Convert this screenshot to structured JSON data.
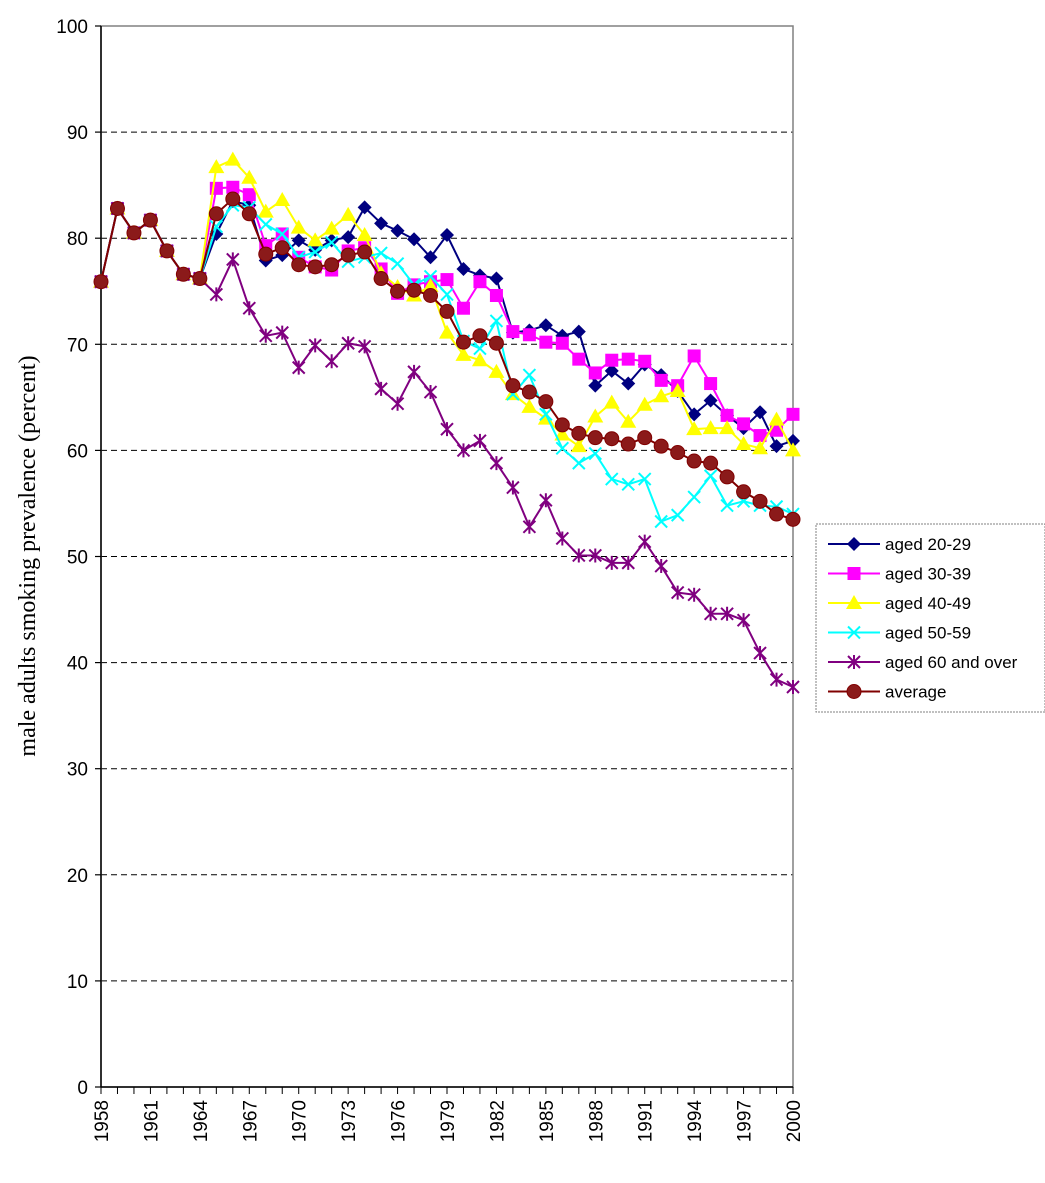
{
  "chart_data": {
    "type": "line",
    "xlabel": "",
    "ylabel": "male adults smoking prevalence (percent)",
    "x": [
      1958,
      1959,
      1960,
      1961,
      1962,
      1963,
      1964,
      1965,
      1966,
      1967,
      1968,
      1969,
      1970,
      1971,
      1972,
      1973,
      1974,
      1975,
      1976,
      1977,
      1978,
      1979,
      1980,
      1981,
      1982,
      1983,
      1984,
      1985,
      1986,
      1987,
      1988,
      1989,
      1990,
      1991,
      1992,
      1993,
      1994,
      1995,
      1996,
      1997,
      1998,
      1999,
      2000
    ],
    "xticks": [
      "1958",
      "1961",
      "1964",
      "1967",
      "1970",
      "1973",
      "1976",
      "1979",
      "1982",
      "1985",
      "1988",
      "1991",
      "1994",
      "1997",
      "2000"
    ],
    "ylim": [
      0,
      100
    ],
    "yticks": [
      "0",
      "10",
      "20",
      "30",
      "40",
      "50",
      "60",
      "70",
      "80",
      "90",
      "100"
    ],
    "grid": "horizontal dashed",
    "legend_position": "right",
    "series": [
      {
        "name": "aged 20-29",
        "color": "#000080",
        "marker": "diamond",
        "values": [
          75.9,
          82.8,
          80.5,
          81.7,
          78.8,
          76.6,
          76.2,
          80.4,
          83.5,
          83.1,
          77.9,
          78.4,
          79.8,
          78.9,
          79.8,
          80.1,
          82.9,
          81.4,
          80.7,
          79.9,
          78.2,
          80.3,
          77.1,
          76.5,
          76.2,
          71.1,
          71.3,
          71.8,
          70.8,
          71.2,
          66.1,
          67.5,
          66.3,
          68.1,
          67.1,
          65.6,
          63.4,
          64.7,
          63.3,
          62.1,
          63.6,
          60.4,
          60.9
        ]
      },
      {
        "name": "aged 30-39",
        "color": "#ff00ff",
        "marker": "square",
        "values": [
          75.9,
          82.8,
          80.5,
          81.7,
          78.8,
          76.6,
          76.2,
          84.7,
          84.8,
          84.1,
          79.3,
          80.4,
          78.2,
          77.3,
          77.0,
          78.8,
          79.1,
          77.1,
          74.8,
          75.6,
          75.9,
          76.1,
          73.4,
          75.9,
          74.6,
          71.2,
          70.9,
          70.2,
          70.1,
          68.6,
          67.3,
          68.5,
          68.6,
          68.4,
          66.6,
          66.1,
          68.9,
          66.3,
          63.3,
          62.5,
          61.4,
          61.9,
          63.4
        ]
      },
      {
        "name": "aged 40-49",
        "color": "#ffff00",
        "marker": "triangle",
        "values": [
          75.9,
          82.8,
          80.5,
          81.7,
          78.8,
          76.6,
          76.2,
          86.7,
          87.4,
          85.7,
          82.5,
          83.6,
          81.0,
          79.8,
          80.9,
          82.2,
          80.3,
          76.7,
          75.4,
          74.6,
          75.5,
          71.1,
          69.0,
          68.5,
          67.4,
          65.3,
          64.1,
          63.0,
          61.5,
          60.4,
          63.2,
          64.5,
          62.7,
          64.3,
          65.1,
          65.6,
          62.0,
          62.1,
          62.1,
          60.6,
          60.2,
          62.9,
          60.0
        ]
      },
      {
        "name": "aged 50-59",
        "color": "#00ffff",
        "marker": "x",
        "values": [
          75.9,
          82.8,
          80.5,
          81.7,
          78.8,
          76.6,
          76.2,
          81.1,
          83.1,
          82.9,
          81.3,
          80.4,
          78.2,
          78.7,
          79.6,
          77.8,
          78.2,
          78.6,
          77.6,
          75.6,
          76.4,
          74.7,
          70.3,
          69.6,
          72.2,
          65.3,
          67.1,
          63.4,
          60.2,
          58.8,
          59.7,
          57.3,
          56.8,
          57.3,
          53.3,
          53.9,
          55.6,
          57.6,
          54.8,
          55.2,
          54.8,
          54.7,
          54.0
        ]
      },
      {
        "name": "aged 60 and over",
        "color": "#800080",
        "marker": "star",
        "values": [
          75.9,
          82.8,
          80.5,
          81.7,
          78.8,
          76.6,
          76.2,
          74.7,
          78.0,
          73.4,
          70.8,
          71.1,
          67.8,
          69.9,
          68.4,
          70.1,
          69.8,
          65.8,
          64.4,
          67.4,
          65.5,
          62.0,
          60.0,
          60.9,
          58.8,
          56.5,
          52.8,
          55.3,
          51.7,
          50.1,
          50.1,
          49.4,
          49.4,
          51.4,
          49.1,
          46.6,
          46.4,
          44.6,
          44.6,
          44.0,
          40.9,
          38.4,
          37.7
        ]
      },
      {
        "name": "average",
        "color": "#800000",
        "fill": "#8b1a1a",
        "marker": "circle",
        "values": [
          75.9,
          82.8,
          80.5,
          81.7,
          78.8,
          76.6,
          76.2,
          82.3,
          83.7,
          82.3,
          78.5,
          79.1,
          77.5,
          77.3,
          77.5,
          78.4,
          78.7,
          76.2,
          75.0,
          75.1,
          74.6,
          73.1,
          70.2,
          70.8,
          70.1,
          66.1,
          65.5,
          64.6,
          62.4,
          61.6,
          61.2,
          61.1,
          60.6,
          61.2,
          60.4,
          59.8,
          59.0,
          58.8,
          57.5,
          56.1,
          55.2,
          54.0,
          53.5
        ]
      }
    ]
  }
}
